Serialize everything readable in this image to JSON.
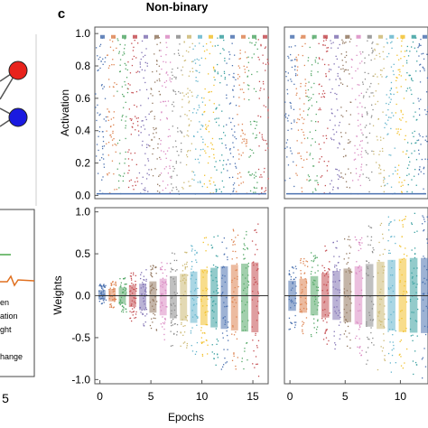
{
  "figure": {
    "title": "Non-binary",
    "panel_label_c": "c",
    "left_panel_label": "5",
    "left_legend_fragments": [
      "en",
      "ation",
      "ght",
      "hange"
    ]
  },
  "colors": {
    "node_top": "#e8231c",
    "node_bottom": "#1a1ae0",
    "axis": "#555555",
    "zero_line": "#333333",
    "change_text": "#d04010",
    "palette": [
      "#4c72b0",
      "#dd8452",
      "#55a868",
      "#c44e52",
      "#8172b3",
      "#937860",
      "#da8bc3",
      "#8c8c8c",
      "#ccb974",
      "#64b5cd",
      "#f2c12e",
      "#3aa0a0"
    ]
  },
  "chart_data": [
    {
      "type": "scatter",
      "panel": "activation-left",
      "xlabel": "",
      "ylabel": "Activation",
      "xlim": [
        -0.5,
        16.5
      ],
      "ylim": [
        -0.02,
        1.04
      ],
      "yticks": [
        "0.0",
        "0.2",
        "0.4",
        "0.6",
        "0.8",
        "1.0"
      ],
      "ytick_values": [
        0.0,
        0.2,
        0.4,
        0.6,
        0.8,
        1.0
      ],
      "grid": false,
      "epochs": 16,
      "band_low": 0.01,
      "band_high": 0.98
    },
    {
      "type": "scatter",
      "panel": "activation-right",
      "xlabel": "",
      "ylabel": "",
      "xlim": [
        -0.5,
        12.5
      ],
      "ylim": [
        -0.02,
        1.04
      ],
      "grid": false,
      "epochs": 13,
      "band_low": 0.01,
      "band_high": 0.98
    },
    {
      "type": "scatter",
      "panel": "weights-left",
      "xlabel": "Epochs",
      "ylabel": "Weights",
      "xlim": [
        -0.5,
        16.5
      ],
      "ylim": [
        -1.05,
        1.05
      ],
      "xticks": [
        "0",
        "5",
        "10",
        "15"
      ],
      "xtick_values": [
        0,
        5,
        10,
        15
      ],
      "yticks": [
        "1.0",
        "0.5",
        "0.0",
        "-0.5",
        "-1.0"
      ],
      "ytick_values": [
        1.0,
        0.5,
        0.0,
        -0.5,
        -1.0
      ],
      "grid": false,
      "series": [
        {
          "epoch": 0,
          "lo": -0.1,
          "hi": 0.15
        },
        {
          "epoch": 1,
          "lo": -0.15,
          "hi": 0.18
        },
        {
          "epoch": 2,
          "lo": -0.22,
          "hi": 0.22
        },
        {
          "epoch": 3,
          "lo": -0.3,
          "hi": 0.28
        },
        {
          "epoch": 4,
          "lo": -0.38,
          "hi": 0.32
        },
        {
          "epoch": 5,
          "lo": -0.45,
          "hi": 0.38
        },
        {
          "epoch": 6,
          "lo": -0.52,
          "hi": 0.45
        },
        {
          "epoch": 7,
          "lo": -0.6,
          "hi": 0.52
        },
        {
          "epoch": 8,
          "lo": -0.66,
          "hi": 0.58
        },
        {
          "epoch": 9,
          "lo": -0.72,
          "hi": 0.64
        },
        {
          "epoch": 10,
          "lo": -0.78,
          "hi": 0.7
        },
        {
          "epoch": 11,
          "lo": -0.84,
          "hi": 0.74
        },
        {
          "epoch": 12,
          "lo": -0.88,
          "hi": 0.78
        },
        {
          "epoch": 13,
          "lo": -0.92,
          "hi": 0.82
        },
        {
          "epoch": 14,
          "lo": -0.95,
          "hi": 0.85
        },
        {
          "epoch": 15,
          "lo": -0.97,
          "hi": 0.88
        }
      ]
    },
    {
      "type": "scatter",
      "panel": "weights-right",
      "xlabel": "",
      "ylabel": "",
      "xlim": [
        -0.5,
        12.5
      ],
      "ylim": [
        -1.05,
        1.05
      ],
      "xticks": [
        "0",
        "5",
        "10"
      ],
      "xtick_values": [
        0,
        5,
        10
      ],
      "grid": false,
      "series": [
        {
          "epoch": 0,
          "lo": -0.4,
          "hi": 0.4
        },
        {
          "epoch": 1,
          "lo": -0.45,
          "hi": 0.45
        },
        {
          "epoch": 2,
          "lo": -0.52,
          "hi": 0.52
        },
        {
          "epoch": 3,
          "lo": -0.58,
          "hi": 0.6
        },
        {
          "epoch": 4,
          "lo": -0.64,
          "hi": 0.66
        },
        {
          "epoch": 5,
          "lo": -0.7,
          "hi": 0.72
        },
        {
          "epoch": 6,
          "lo": -0.76,
          "hi": 0.78
        },
        {
          "epoch": 7,
          "lo": -0.82,
          "hi": 0.84
        },
        {
          "epoch": 8,
          "lo": -0.88,
          "hi": 0.9
        },
        {
          "epoch": 9,
          "lo": -0.92,
          "hi": 0.95
        },
        {
          "epoch": 10,
          "lo": -0.96,
          "hi": 0.98
        },
        {
          "epoch": 11,
          "lo": -0.98,
          "hi": 1.0
        },
        {
          "epoch": 12,
          "lo": -0.99,
          "hi": 1.0
        }
      ]
    }
  ]
}
